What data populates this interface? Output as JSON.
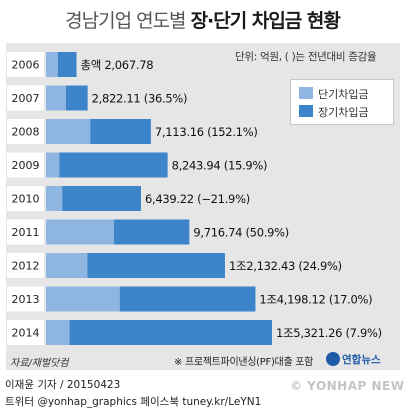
{
  "title": {
    "light": "경남기업 연도별 ",
    "bold": "장·단기 차입금 현황"
  },
  "unit_note": "단위: 억원, ( )는 전년대비 증감율",
  "legend": [
    {
      "label": "단기차입금",
      "color": "#8fb5e3"
    },
    {
      "label": "장기차입금",
      "color": "#3d84cb"
    }
  ],
  "colors": {
    "short_term": "#8fb5e3",
    "long_term": "#3d84cb",
    "panel": "#e6e6e6",
    "year_box": "#ffffff"
  },
  "chart_data": {
    "type": "bar",
    "orientation": "horizontal",
    "stacked": true,
    "categories": [
      "2006",
      "2007",
      "2008",
      "2009",
      "2010",
      "2011",
      "2012",
      "2013",
      "2014"
    ],
    "series": [
      {
        "name": "단기차입금",
        "values": [
          800,
          1350,
          3000,
          900,
          1100,
          4600,
          2800,
          5000,
          1600
        ]
      },
      {
        "name": "장기차입금",
        "values": [
          1267.78,
          1472.11,
          4113.16,
          7343.94,
          5339.22,
          5116.74,
          9332.43,
          9198.12,
          13721.26
        ]
      }
    ],
    "totals": [
      2067.78,
      2822.11,
      7113.16,
      8243.94,
      6439.22,
      9716.74,
      12132.43,
      14198.12,
      15321.26
    ],
    "total_labels": [
      "총액 2,067.78",
      "2,822.11 (36.5%)",
      "7,113.16 (152.1%)",
      "8,243.94 (15.9%)",
      "6,439.22 (−21.9%)",
      "9,716.74 (50.9%)",
      "1조2,132.43 (24.9%)",
      "1조4,198.12 (17.0%)",
      "1조5,321.26 (7.9%)"
    ],
    "xlim": [
      0,
      15321.26
    ],
    "grid": false,
    "legend_position": "top-right"
  },
  "source": "자료/재벌닷컴",
  "footnote": "※ 프로젝트파이낸싱(PF)대출 포함",
  "logo": {
    "text": "연합뉴스",
    "icon": "yonhap-logo-icon"
  },
  "credits": {
    "line1": "이재윤 기자 / 20150423",
    "line2": "트위터 @yonhap_graphics  페이스북 tuney.kr/LeYN1"
  },
  "watermark": "© YONHAP NEWS"
}
